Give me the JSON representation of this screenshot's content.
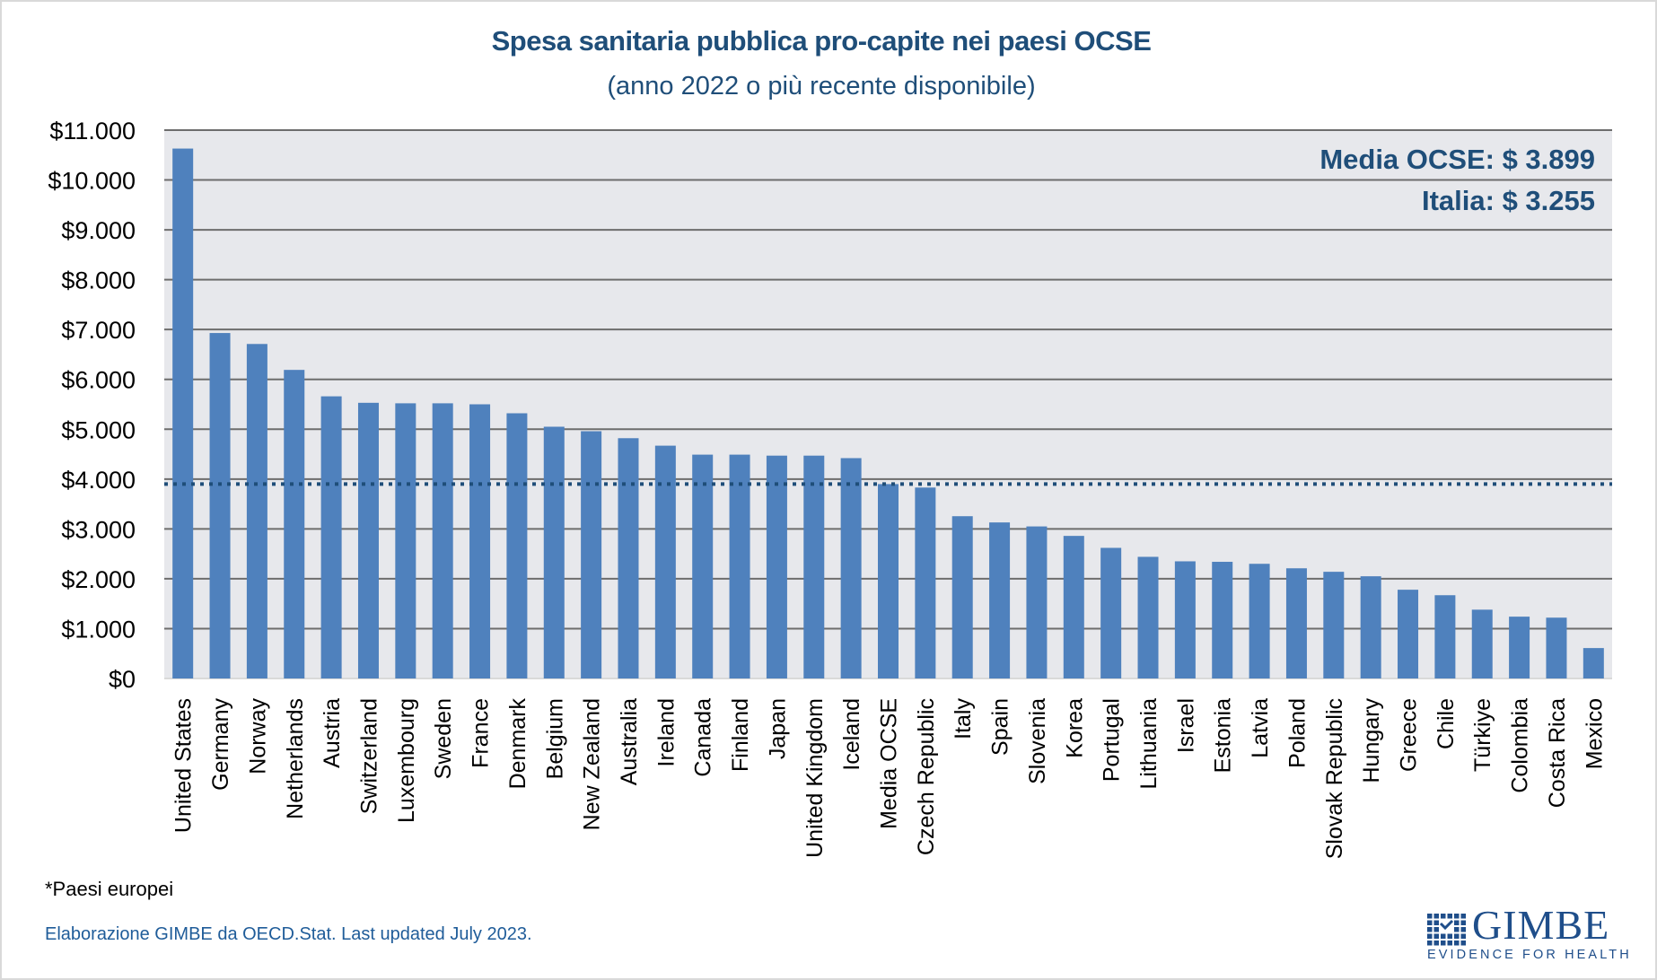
{
  "title": "Spesa sanitaria pubblica pro-capite nei paesi OCSE",
  "subtitle": "(anno 2022 o più recente disponibile)",
  "legend": {
    "media_line": "Media OCSE: $ 3.899",
    "italia_line": "Italia: $ 3.255"
  },
  "footnote": "*Paesi europei",
  "source": "Elaborazione GIMBE da OECD.Stat. Last updated July 2023.",
  "logo": {
    "word": "GIMBE",
    "tagline": "EVIDENCE FOR HEALTH"
  },
  "colors": {
    "title": "#1f4e79",
    "bar": "#4f81bd",
    "plot_bg": "#e7e8ec",
    "gridline": "#6d6d6d",
    "reference_line": "#1f4e79",
    "source_text": "#1f5c99",
    "logo": "#1f4e8a"
  },
  "chart_data": {
    "type": "bar",
    "title": "Spesa sanitaria pubblica pro-capite nei paesi OCSE",
    "subtitle": "(anno 2022 o più recente disponibile)",
    "xlabel": "",
    "ylabel": "",
    "ylim": [
      0,
      11000
    ],
    "yticks": [
      0,
      1000,
      2000,
      3000,
      4000,
      5000,
      6000,
      7000,
      8000,
      9000,
      10000,
      11000
    ],
    "ytick_labels": [
      "$0",
      "$1.000",
      "$2.000",
      "$3.000",
      "$4.000",
      "$5.000",
      "$6.000",
      "$7.000",
      "$8.000",
      "$9.000",
      "$10.000",
      "$11.000"
    ],
    "grid": true,
    "legend": "none",
    "categories": [
      "United States",
      "Germany",
      "Norway",
      "Netherlands",
      "Austria",
      "Switzerland",
      "Luxembourg",
      "Sweden",
      "France",
      "Denmark",
      "Belgium",
      "New Zealand",
      "Australia",
      "Ireland",
      "Canada",
      "Finland",
      "Japan",
      "United Kingdom",
      "Iceland",
      "Media OCSE",
      "Czech Republic",
      "Italy",
      "Spain",
      "Slovenia",
      "Korea",
      "Portugal",
      "Lithuania",
      "Israel",
      "Estonia",
      "Latvia",
      "Poland",
      "Slovak Republic",
      "Hungary",
      "Greece",
      "Chile",
      "Türkiye",
      "Colombia",
      "Costa Rica",
      "Mexico"
    ],
    "values": [
      10630,
      6930,
      6710,
      6190,
      5660,
      5530,
      5520,
      5520,
      5500,
      5320,
      5050,
      4960,
      4820,
      4670,
      4490,
      4490,
      4470,
      4470,
      4420,
      3899,
      3830,
      3255,
      3130,
      3050,
      2860,
      2620,
      2440,
      2350,
      2340,
      2300,
      2210,
      2140,
      2050,
      1780,
      1670,
      1380,
      1240,
      1220,
      610
    ],
    "reference_line": {
      "label": "Media OCSE",
      "value": 3899,
      "style": "dotted"
    },
    "annotations": [
      "Media OCSE: $ 3.899",
      "Italia: $ 3.255"
    ]
  }
}
